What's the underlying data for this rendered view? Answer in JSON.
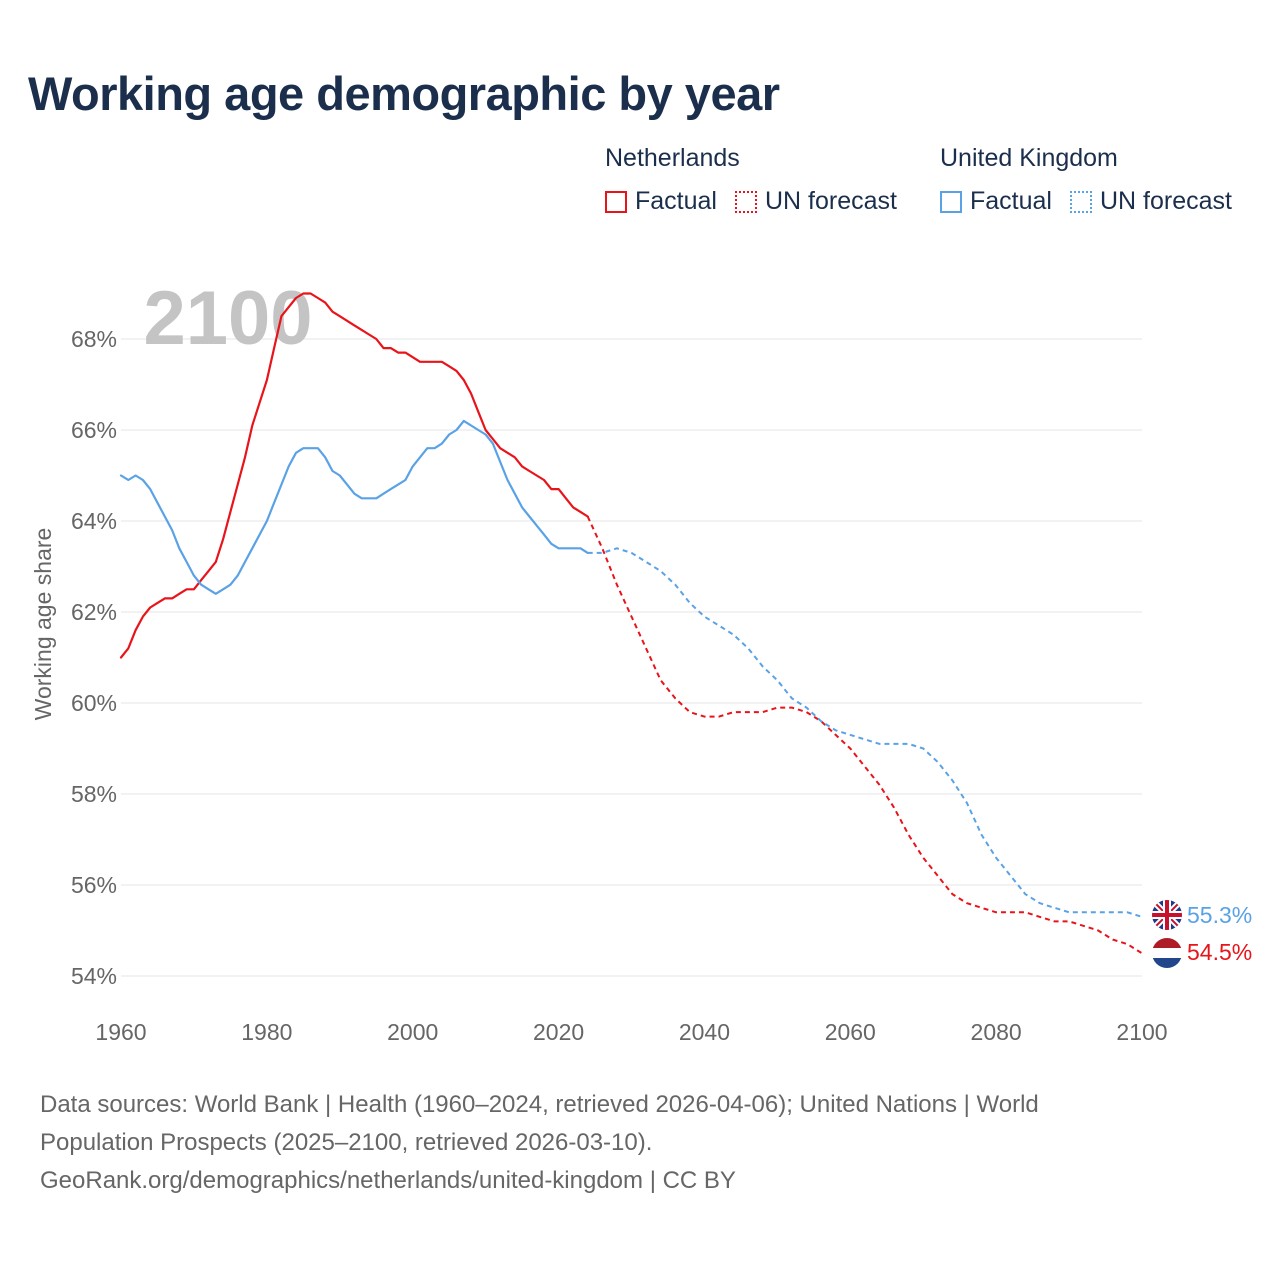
{
  "title": "Working age demographic by year",
  "year_watermark": "2100",
  "legend": {
    "groups": [
      {
        "name": "Netherlands",
        "color": "#e8141a",
        "factual_label": "Factual",
        "forecast_label": "UN forecast"
      },
      {
        "name": "United Kingdom",
        "color": "#5aa2e6",
        "factual_label": "Factual",
        "forecast_label": "UN forecast"
      }
    ]
  },
  "footer": {
    "line1": "Data sources: World Bank | Health (1960–2024, retrieved 2026-04-06); United Nations | World",
    "line2": "Population Prospects (2025–2100, retrieved 2026-03-10).",
    "line3": "GeoRank.org/demographics/netherlands/united-kingdom | CC BY"
  },
  "chart_data": {
    "type": "line",
    "title": "Working age demographic by year",
    "xlabel": "",
    "ylabel": "Working age share",
    "xlim": [
      1960,
      2100
    ],
    "ylim": [
      53.7,
      69.3
    ],
    "x_ticks": [
      1960,
      1980,
      2000,
      2020,
      2040,
      2060,
      2080,
      2100
    ],
    "x_tick_labels": [
      "1960",
      "1980",
      "2000",
      "2020",
      "2040",
      "2060",
      "2080",
      "2100"
    ],
    "y_ticks": [
      54,
      56,
      58,
      60,
      62,
      64,
      66,
      68
    ],
    "y_tick_labels": [
      "54%",
      "56%",
      "58%",
      "60%",
      "62%",
      "64%",
      "66%",
      "68%"
    ],
    "grid": true,
    "series": [
      {
        "name": "Netherlands",
        "color": "#e8141a",
        "end_label": "54.5%",
        "factual": {
          "x": [
            1960,
            1961,
            1962,
            1963,
            1964,
            1965,
            1966,
            1967,
            1968,
            1969,
            1970,
            1971,
            1972,
            1973,
            1974,
            1975,
            1976,
            1977,
            1978,
            1979,
            1980,
            1981,
            1982,
            1983,
            1984,
            1985,
            1986,
            1987,
            1988,
            1989,
            1990,
            1991,
            1992,
            1993,
            1994,
            1995,
            1996,
            1997,
            1998,
            1999,
            2000,
            2001,
            2002,
            2003,
            2004,
            2005,
            2006,
            2007,
            2008,
            2009,
            2010,
            2011,
            2012,
            2013,
            2014,
            2015,
            2016,
            2017,
            2018,
            2019,
            2020,
            2021,
            2022,
            2023,
            2024
          ],
          "y": [
            61.0,
            61.2,
            61.6,
            61.9,
            62.1,
            62.2,
            62.3,
            62.3,
            62.4,
            62.5,
            62.5,
            62.7,
            62.9,
            63.1,
            63.6,
            64.2,
            64.8,
            65.4,
            66.1,
            66.6,
            67.1,
            67.8,
            68.5,
            68.7,
            68.9,
            69.0,
            69.0,
            68.9,
            68.8,
            68.6,
            68.5,
            68.4,
            68.3,
            68.2,
            68.1,
            68.0,
            67.8,
            67.8,
            67.7,
            67.7,
            67.6,
            67.5,
            67.5,
            67.5,
            67.5,
            67.4,
            67.3,
            67.1,
            66.8,
            66.4,
            66.0,
            65.8,
            65.6,
            65.5,
            65.4,
            65.2,
            65.1,
            65.0,
            64.9,
            64.7,
            64.7,
            64.5,
            64.3,
            64.2,
            64.1
          ]
        },
        "forecast": {
          "x": [
            2024,
            2026,
            2028,
            2030,
            2032,
            2034,
            2036,
            2038,
            2040,
            2042,
            2044,
            2046,
            2048,
            2050,
            2052,
            2054,
            2056,
            2058,
            2060,
            2062,
            2064,
            2066,
            2068,
            2070,
            2072,
            2074,
            2076,
            2078,
            2080,
            2082,
            2084,
            2086,
            2088,
            2090,
            2092,
            2094,
            2096,
            2098,
            2100
          ],
          "y": [
            64.1,
            63.4,
            62.6,
            61.9,
            61.2,
            60.5,
            60.1,
            59.8,
            59.7,
            59.7,
            59.8,
            59.8,
            59.8,
            59.9,
            59.9,
            59.8,
            59.6,
            59.3,
            59.0,
            58.6,
            58.2,
            57.7,
            57.1,
            56.6,
            56.2,
            55.8,
            55.6,
            55.5,
            55.4,
            55.4,
            55.4,
            55.3,
            55.2,
            55.2,
            55.1,
            55.0,
            54.8,
            54.7,
            54.5
          ]
        }
      },
      {
        "name": "United Kingdom",
        "color": "#5aa2e6",
        "end_label": "55.3%",
        "factual": {
          "x": [
            1960,
            1961,
            1962,
            1963,
            1964,
            1965,
            1966,
            1967,
            1968,
            1969,
            1970,
            1971,
            1972,
            1973,
            1974,
            1975,
            1976,
            1977,
            1978,
            1979,
            1980,
            1981,
            1982,
            1983,
            1984,
            1985,
            1986,
            1987,
            1988,
            1989,
            1990,
            1991,
            1992,
            1993,
            1994,
            1995,
            1996,
            1997,
            1998,
            1999,
            2000,
            2001,
            2002,
            2003,
            2004,
            2005,
            2006,
            2007,
            2008,
            2009,
            2010,
            2011,
            2012,
            2013,
            2014,
            2015,
            2016,
            2017,
            2018,
            2019,
            2020,
            2021,
            2022,
            2023,
            2024
          ],
          "y": [
            65.0,
            64.9,
            65.0,
            64.9,
            64.7,
            64.4,
            64.1,
            63.8,
            63.4,
            63.1,
            62.8,
            62.6,
            62.5,
            62.4,
            62.5,
            62.6,
            62.8,
            63.1,
            63.4,
            63.7,
            64.0,
            64.4,
            64.8,
            65.2,
            65.5,
            65.6,
            65.6,
            65.6,
            65.4,
            65.1,
            65.0,
            64.8,
            64.6,
            64.5,
            64.5,
            64.5,
            64.6,
            64.7,
            64.8,
            64.9,
            65.2,
            65.4,
            65.6,
            65.6,
            65.7,
            65.9,
            66.0,
            66.2,
            66.1,
            66.0,
            65.9,
            65.7,
            65.3,
            64.9,
            64.6,
            64.3,
            64.1,
            63.9,
            63.7,
            63.5,
            63.4,
            63.4,
            63.4,
            63.4,
            63.3
          ]
        },
        "forecast": {
          "x": [
            2024,
            2026,
            2028,
            2030,
            2032,
            2034,
            2036,
            2038,
            2040,
            2042,
            2044,
            2046,
            2048,
            2050,
            2052,
            2054,
            2056,
            2058,
            2060,
            2062,
            2064,
            2066,
            2068,
            2070,
            2072,
            2074,
            2076,
            2078,
            2080,
            2082,
            2084,
            2086,
            2088,
            2090,
            2092,
            2094,
            2096,
            2098,
            2100
          ],
          "y": [
            63.3,
            63.3,
            63.4,
            63.3,
            63.1,
            62.9,
            62.6,
            62.2,
            61.9,
            61.7,
            61.5,
            61.2,
            60.8,
            60.5,
            60.1,
            59.9,
            59.6,
            59.4,
            59.3,
            59.2,
            59.1,
            59.1,
            59.1,
            59.0,
            58.7,
            58.3,
            57.8,
            57.1,
            56.6,
            56.2,
            55.8,
            55.6,
            55.5,
            55.4,
            55.4,
            55.4,
            55.4,
            55.4,
            55.3
          ]
        }
      }
    ]
  }
}
